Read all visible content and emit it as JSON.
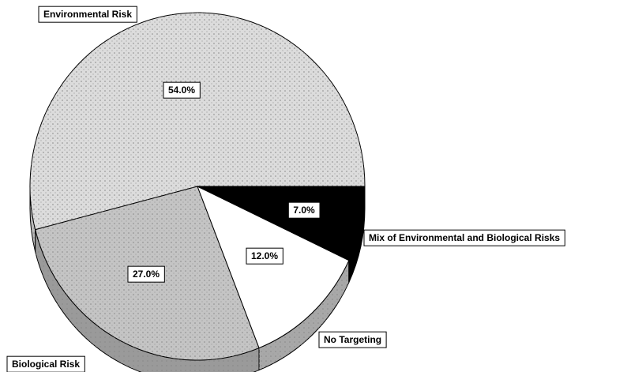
{
  "chart_data": {
    "type": "pie",
    "categories": [
      "Environmental Risk",
      "Biological Risk",
      "No Targeting",
      "Mix of Environmental and Biological Risks"
    ],
    "values": [
      54,
      27,
      12,
      7
    ],
    "value_labels": [
      "54.0%",
      "27.0%",
      "12.0%",
      "7.0%"
    ],
    "colors": [
      "#dcdcdc",
      "#c4c4c4",
      "#ffffff",
      "#000000"
    ]
  }
}
